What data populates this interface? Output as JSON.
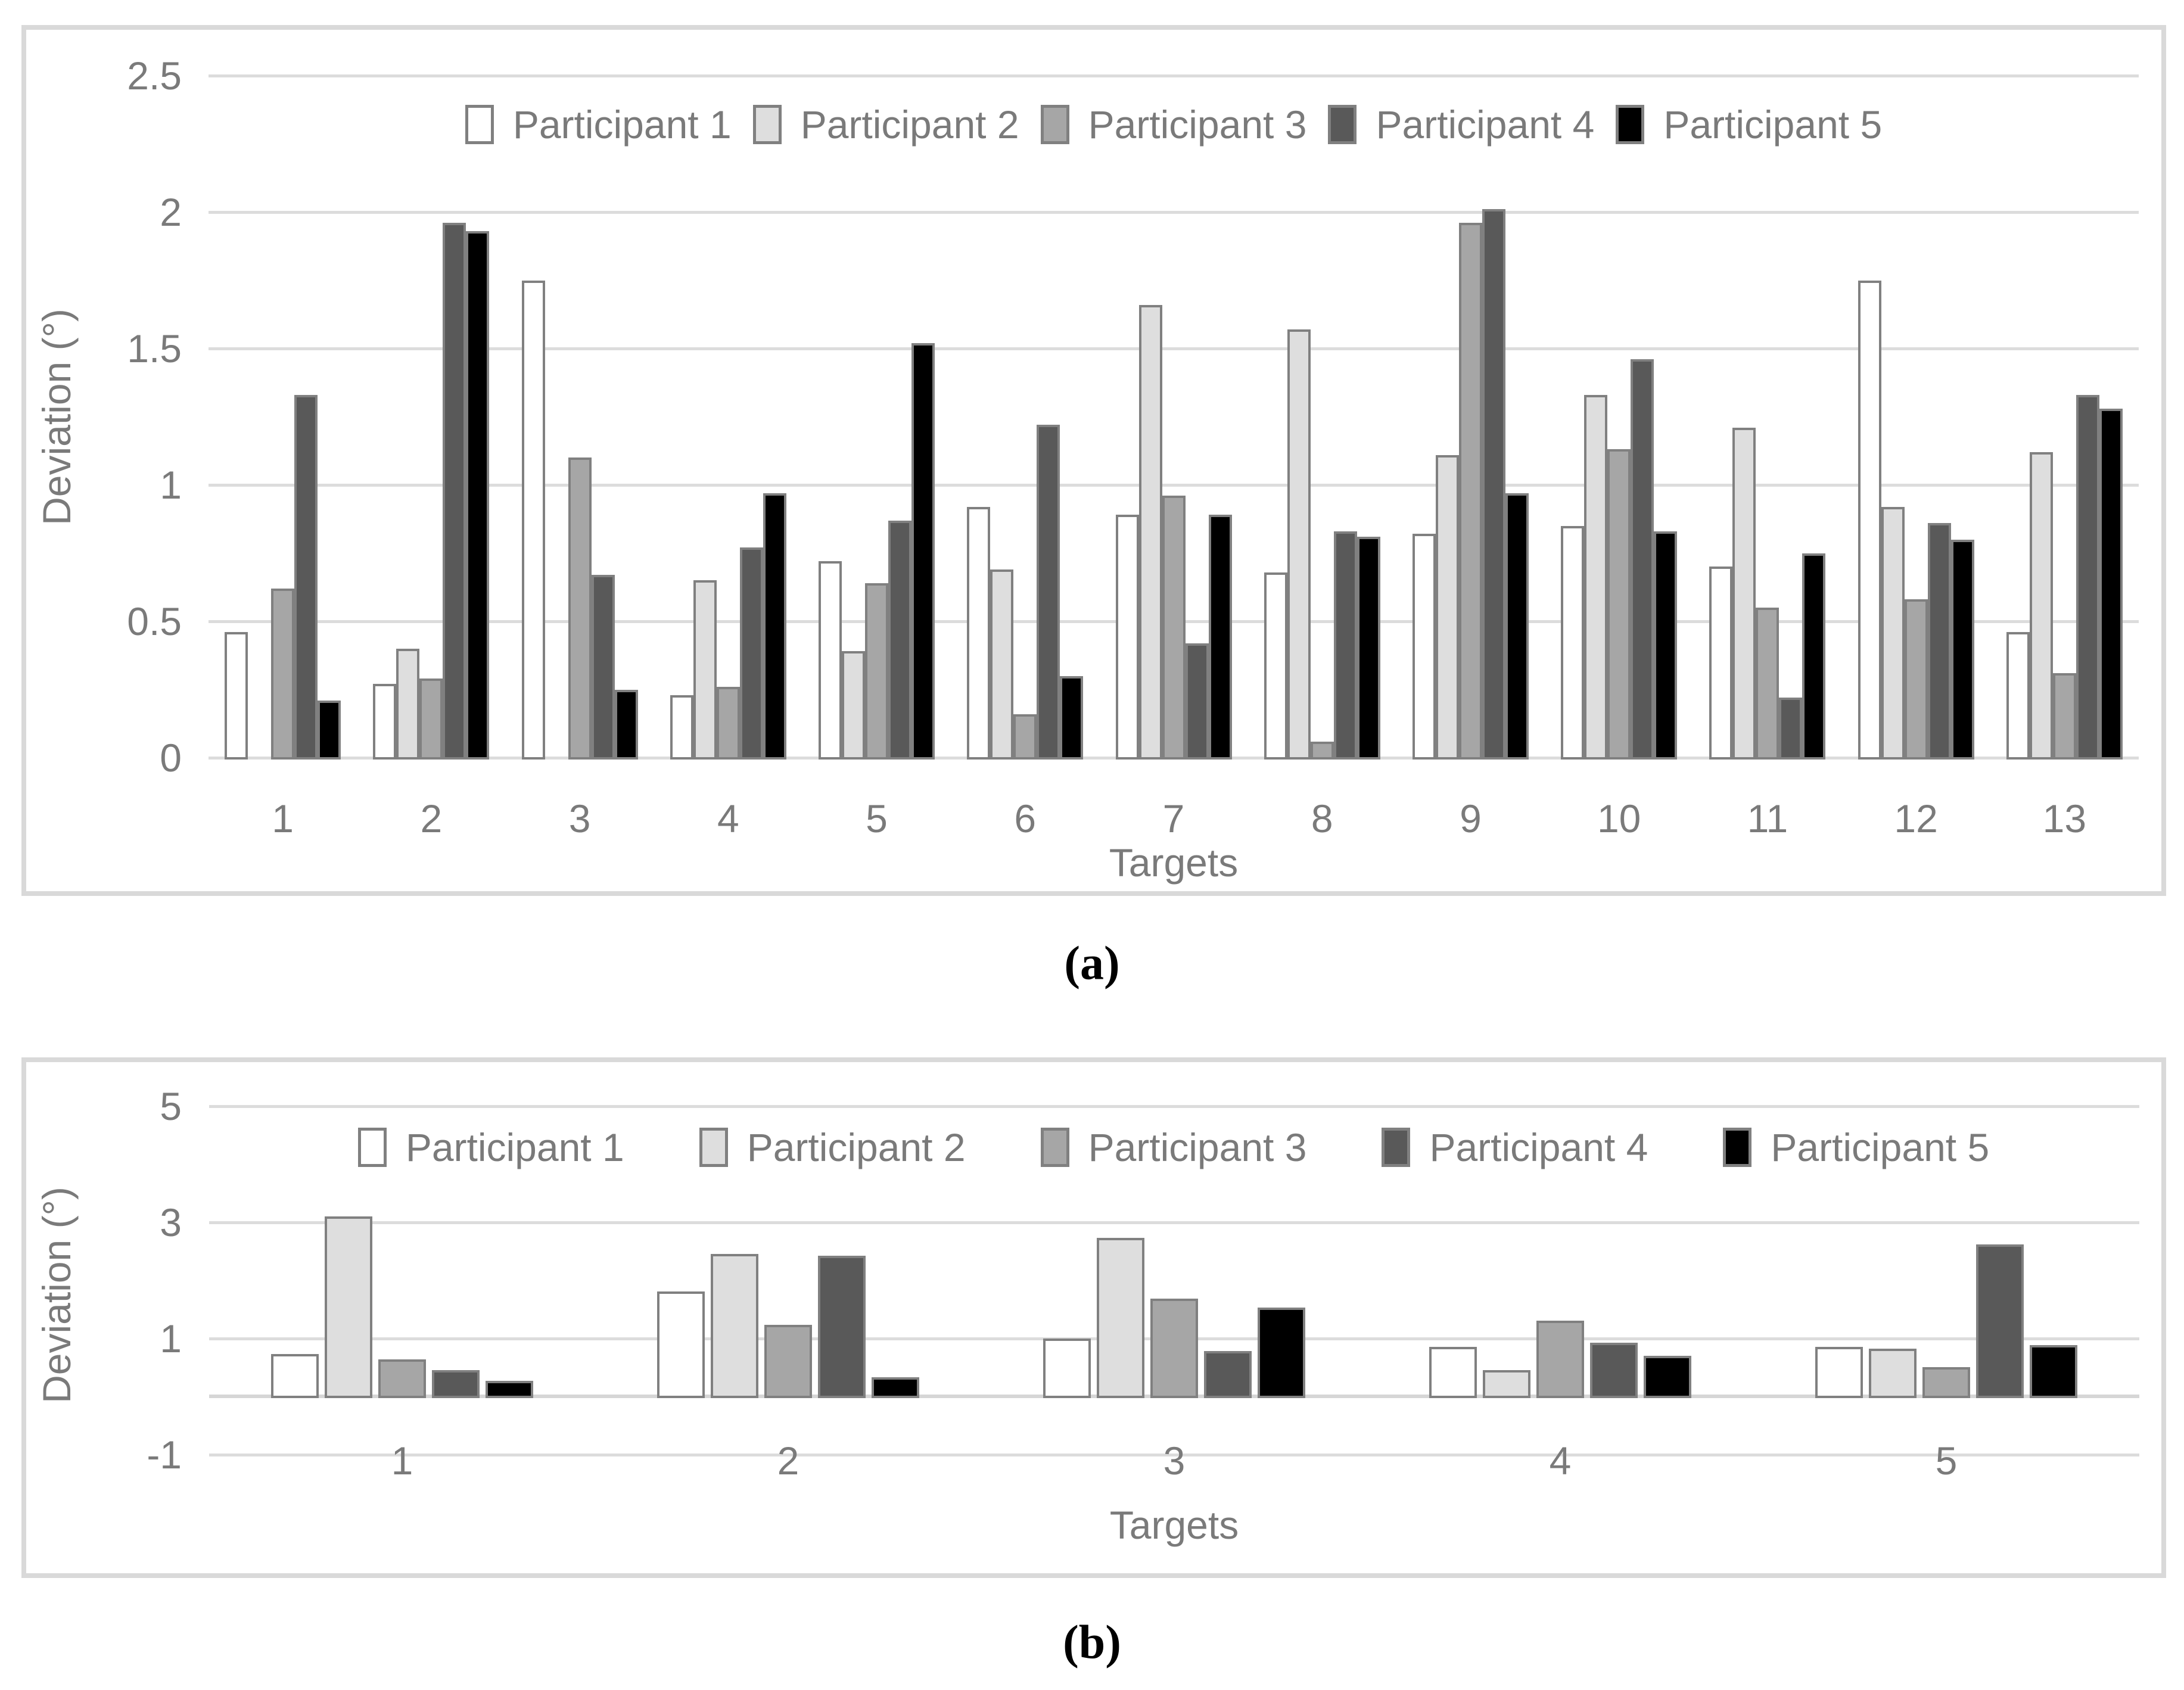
{
  "panel_labels": {
    "a": "(a)",
    "b": "(b)"
  },
  "styles": {
    "bar_border": "#808080",
    "gridline": "#dcdcdc",
    "panel_border": "#d9d9d9",
    "axis_text": "#7a7a7a",
    "panel_label_color": "#000000",
    "series_fills": [
      "#ffffff",
      "#dedede",
      "#a6a6a6",
      "#595959",
      "#000000"
    ]
  },
  "chart_data": [
    {
      "id": "a",
      "type": "bar",
      "title": "",
      "xlabel": "Targets",
      "ylabel": "Deviation (°)",
      "ylim": [
        0,
        2.5
      ],
      "yticks": [
        0,
        0.5,
        1,
        1.5,
        2,
        2.5
      ],
      "grid": "horizontal",
      "legend_position": "top-center-inside",
      "categories": [
        "1",
        "2",
        "3",
        "4",
        "5",
        "6",
        "7",
        "8",
        "9",
        "10",
        "11",
        "12",
        "13"
      ],
      "series": [
        {
          "name": "Participant 1",
          "color": "#ffffff",
          "values": [
            0.46,
            0.27,
            1.75,
            0.23,
            0.72,
            0.92,
            0.89,
            0.68,
            0.82,
            0.85,
            0.7,
            1.75,
            0.46
          ]
        },
        {
          "name": "Participant 2",
          "color": "#dedede",
          "values": [
            0,
            0.4,
            0,
            0.65,
            0.39,
            0.69,
            1.66,
            1.57,
            1.11,
            1.33,
            1.21,
            0.92,
            1.12
          ]
        },
        {
          "name": "Participant 3",
          "color": "#a6a6a6",
          "values": [
            0.62,
            0.29,
            1.1,
            0.26,
            0.64,
            0.16,
            0.96,
            0.06,
            1.96,
            1.13,
            0.55,
            0.58,
            0.31
          ]
        },
        {
          "name": "Participant 4",
          "color": "#595959",
          "values": [
            1.33,
            1.96,
            0.67,
            0.77,
            0.87,
            1.22,
            0.42,
            0.83,
            2.01,
            1.46,
            0.22,
            0.86,
            1.33
          ]
        },
        {
          "name": "Participant 5",
          "color": "#000000",
          "values": [
            0.21,
            1.93,
            0.25,
            0.97,
            1.52,
            0.3,
            0.89,
            0.81,
            0.97,
            0.83,
            0.75,
            0.8,
            1.28
          ]
        }
      ]
    },
    {
      "id": "b",
      "type": "bar",
      "title": "",
      "xlabel": "Targets",
      "ylabel": "Deviation (°)",
      "ylim": [
        -1,
        5
      ],
      "yticks": [
        -1,
        1,
        3,
        5
      ],
      "baseline": 0,
      "grid": "horizontal",
      "legend_position": "top-center-inside",
      "categories": [
        "1",
        "2",
        "3",
        "4",
        "5"
      ],
      "series": [
        {
          "name": "Participant 1",
          "color": "#ffffff",
          "values": [
            0.73,
            1.81,
            1.0,
            0.85,
            0.85
          ]
        },
        {
          "name": "Participant 2",
          "color": "#dedede",
          "values": [
            3.1,
            2.45,
            2.73,
            0.45,
            0.82
          ]
        },
        {
          "name": "Participant 3",
          "color": "#a6a6a6",
          "values": [
            0.64,
            1.23,
            1.68,
            1.3,
            0.5
          ]
        },
        {
          "name": "Participant 4",
          "color": "#595959",
          "values": [
            0.45,
            2.42,
            0.78,
            0.92,
            2.62
          ]
        },
        {
          "name": "Participant 5",
          "color": "#000000",
          "values": [
            0.27,
            0.33,
            1.53,
            0.7,
            0.88
          ]
        }
      ]
    }
  ]
}
